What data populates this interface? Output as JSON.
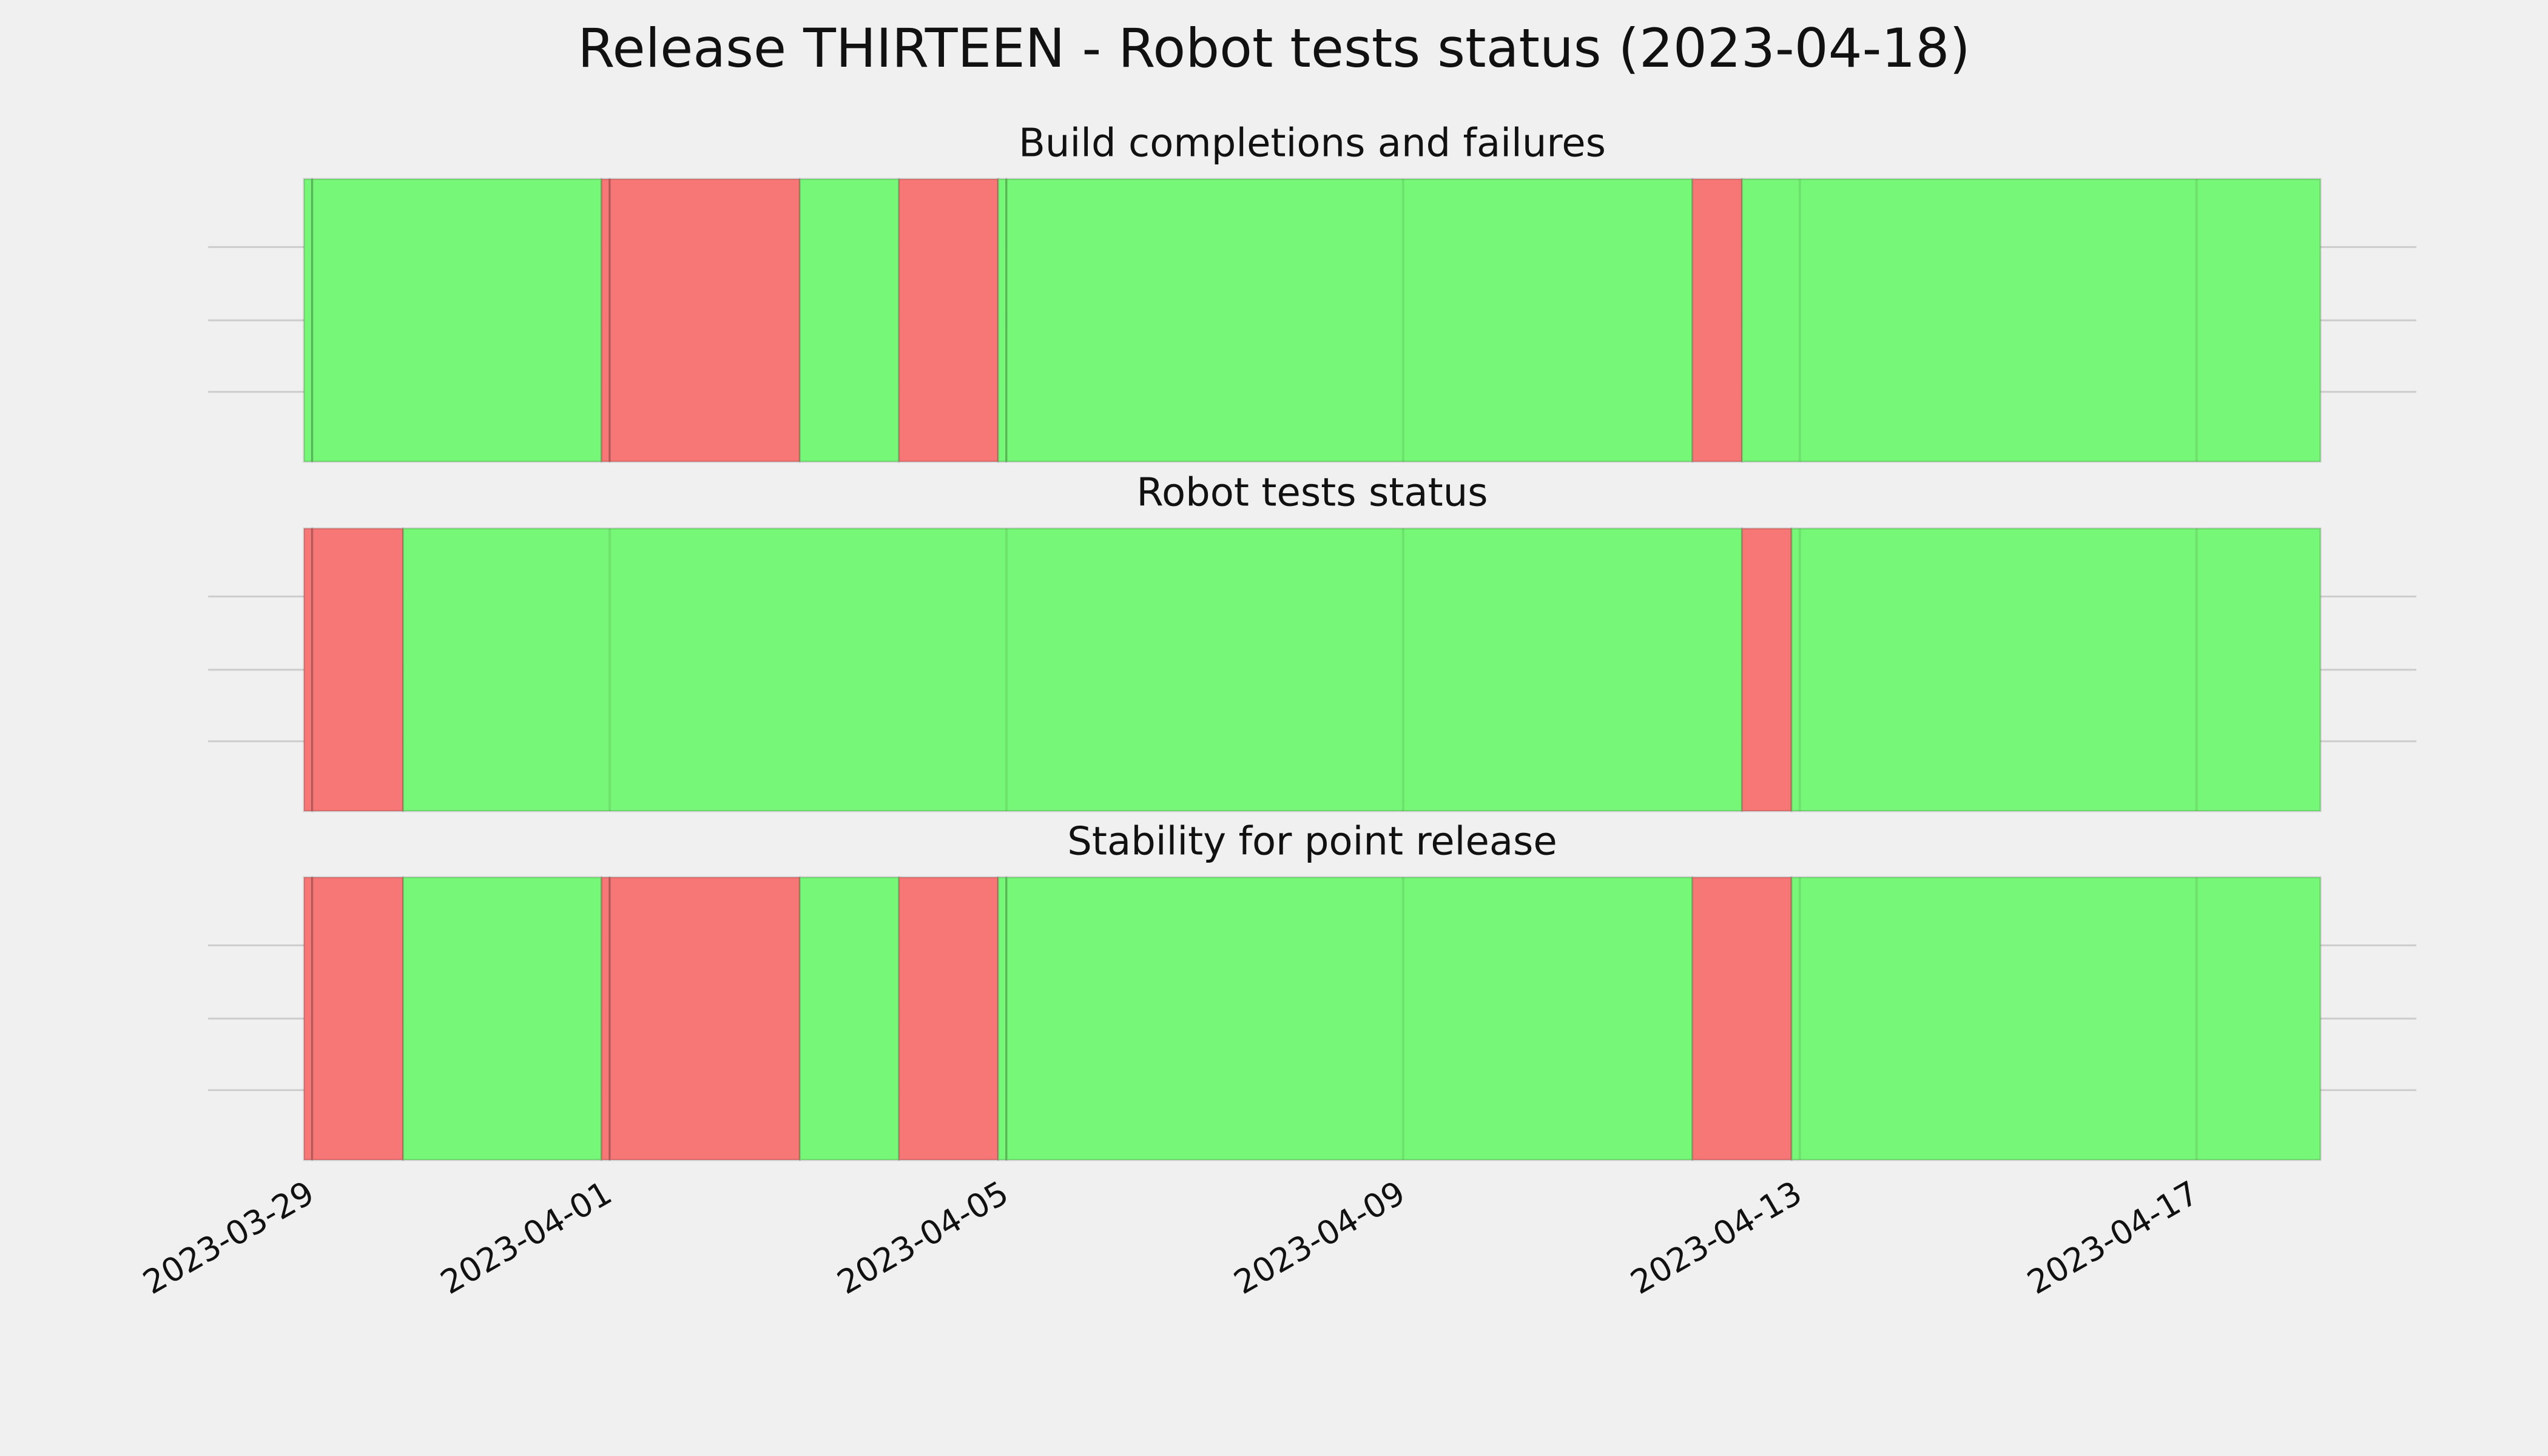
{
  "chart_data": {
    "type": "timeline",
    "title": "Release THIRTEEN - Robot tests status (2023-04-18)",
    "xlim": [
      "2023-03-28T22:00",
      "2023-04-18T06:00"
    ],
    "xticks": [
      "2023-03-29",
      "2023-04-01",
      "2023-04-05",
      "2023-04-09",
      "2023-04-13",
      "2023-04-17"
    ],
    "grid": true,
    "panels": [
      {
        "title": "Build completions and failures",
        "x": [
          "2023-03-28T22:00",
          "2023-03-29T00:00",
          "2023-03-31T22:00",
          "2023-04-01T00:00",
          "2023-04-02T22:00",
          "2023-04-03T22:00",
          "2023-04-04T22:00",
          "2023-04-05T00:00",
          "2023-04-11T22:00",
          "2023-04-12T10:00",
          "2023-04-18T06:00"
        ],
        "colors": [
          "#77f777",
          "#77f777",
          "#f77777",
          "#f77777",
          "#77f777",
          "#f77777",
          "#77f777",
          "#77f777",
          "#f77777",
          "#77f777"
        ]
      },
      {
        "title": "Robot tests status",
        "x": [
          "2023-03-28T22:00",
          "2023-03-29T00:00",
          "2023-03-29T22:00",
          "2023-04-12T10:00",
          "2023-04-12T22:00",
          "2023-04-18T06:00"
        ],
        "colors": [
          "#f77777",
          "#f77777",
          "#77f777",
          "#f77777",
          "#77f777"
        ]
      },
      {
        "title": "Stability for point release",
        "x": [
          "2023-03-28T22:00",
          "2023-03-29T00:00",
          "2023-03-29T22:00",
          "2023-03-31T22:00",
          "2023-04-01T00:00",
          "2023-04-02T22:00",
          "2023-04-03T22:00",
          "2023-04-04T22:00",
          "2023-04-05T00:00",
          "2023-04-11T22:00",
          "2023-04-12T22:00",
          "2023-04-18T06:00"
        ],
        "colors": [
          "#f77777",
          "#f77777",
          "#77f777",
          "#f77777",
          "#f77777",
          "#77f777",
          "#f77777",
          "#77f777",
          "#77f777",
          "#f77777",
          "#77f777"
        ]
      }
    ]
  }
}
